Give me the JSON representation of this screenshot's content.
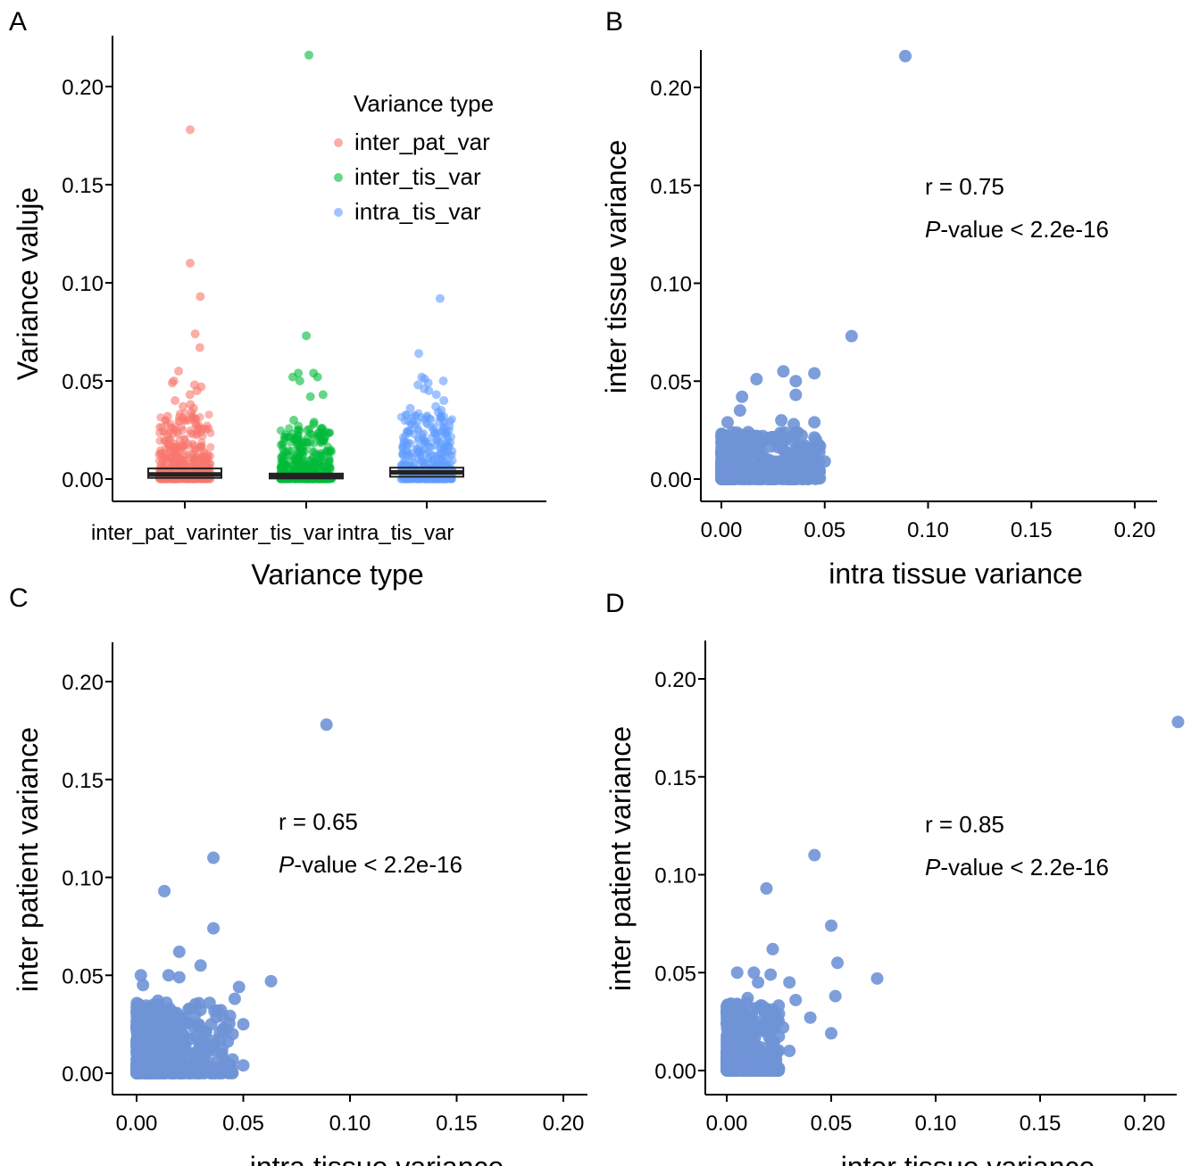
{
  "chart_data": [
    {
      "panel": "A",
      "type": "scatter",
      "subtype": "jitter-box",
      "xlabel": "Variance type",
      "ylabel": "Variance valuje",
      "ylim": [
        -0.012,
        0.225
      ],
      "yticks": [
        "0.00",
        "0.05",
        "0.10",
        "0.15",
        "0.20"
      ],
      "yticks_values": [
        0,
        0.05,
        0.1,
        0.15,
        0.2
      ],
      "categories": [
        "inter_pat_var",
        "inter_tis_var",
        "intra_tis_var"
      ],
      "legend": {
        "title": "Variance type",
        "placement": "top-right",
        "entries": [
          "inter_pat_var",
          "inter_tis_var",
          "intra_tis_var"
        ]
      },
      "grid": false,
      "series": [
        {
          "name": "inter_pat_var",
          "color": "#f8766d",
          "box": [
            0.0006,
            0.0024,
            0.0054
          ],
          "outliers": [
            0.178,
            0.11,
            0.093,
            0.074,
            0.067,
            0.055,
            0.05,
            0.049,
            0.048,
            0.047,
            0.045,
            0.043,
            0.04,
            0.038,
            0.037,
            0.036,
            0.034,
            0.032,
            0.03,
            0.028
          ]
        },
        {
          "name": "inter_tis_var",
          "color": "#00ba38",
          "box": [
            0.0003,
            0.0013,
            0.0028
          ],
          "outliers": [
            0.216,
            0.073,
            0.054,
            0.054,
            0.052,
            0.052,
            0.05,
            0.043,
            0.042,
            0.03,
            0.029,
            0.028,
            0.027,
            0.026,
            0.025
          ]
        },
        {
          "name": "intra_tis_var",
          "color": "#619cff",
          "box": [
            0.0012,
            0.0034,
            0.0058
          ],
          "outliers": [
            0.092,
            0.064,
            0.052,
            0.051,
            0.05,
            0.049,
            0.048,
            0.046,
            0.045,
            0.043,
            0.04,
            0.037,
            0.036,
            0.035,
            0.034
          ]
        }
      ]
    },
    {
      "panel": "B",
      "type": "scatter",
      "xlabel": "intra tissue variance",
      "ylabel": "inter tissue variance",
      "xlim": [
        -0.012,
        0.212
      ],
      "ylim": [
        -0.012,
        0.22
      ],
      "xticks": [
        "0.00",
        "0.05",
        "0.10",
        "0.15",
        "0.20"
      ],
      "yticks": [
        "0.00",
        "0.05",
        "0.10",
        "0.15",
        "0.20"
      ],
      "ticks_values": [
        0,
        0.05,
        0.1,
        0.15,
        0.2
      ],
      "annotation_r": "r = 0.75",
      "annotation_p_italic": "P",
      "annotation_p_rest": "-value < 2.2e-16",
      "color": "#6f93d6",
      "grid": false,
      "points": [
        [
          0.089,
          0.216
        ],
        [
          0.063,
          0.073
        ],
        [
          0.045,
          0.054
        ],
        [
          0.03,
          0.055
        ],
        [
          0.036,
          0.05
        ],
        [
          0.017,
          0.051
        ],
        [
          0.036,
          0.043
        ],
        [
          0.01,
          0.042
        ],
        [
          0.009,
          0.035
        ],
        [
          0.029,
          0.03
        ],
        [
          0.035,
          0.028
        ],
        [
          0.045,
          0.029
        ],
        [
          0.003,
          0.029
        ],
        [
          0.013,
          0.024
        ],
        [
          0.02,
          0.022
        ],
        [
          0.045,
          0.016
        ],
        [
          0.05,
          0.009
        ],
        [
          0.046,
          0.01
        ],
        [
          0.04,
          0.011
        ],
        [
          0.033,
          0.013
        ],
        [
          0.028,
          0.009
        ],
        [
          0.025,
          0.005
        ],
        [
          0.035,
          0.006
        ],
        [
          0.002,
          0.022
        ],
        [
          0.006,
          0.018
        ]
      ]
    },
    {
      "panel": "C",
      "type": "scatter",
      "xlabel": "intra tissue variance",
      "ylabel": "inter patient variance",
      "xlim": [
        -0.012,
        0.212
      ],
      "ylim": [
        -0.012,
        0.22
      ],
      "xticks": [
        "0.00",
        "0.05",
        "0.10",
        "0.15",
        "0.20"
      ],
      "yticks": [
        "0.00",
        "0.05",
        "0.10",
        "0.15",
        "0.20"
      ],
      "ticks_values": [
        0,
        0.05,
        0.1,
        0.15,
        0.2
      ],
      "annotation_r": "r = 0.65",
      "annotation_p_italic": "P",
      "annotation_p_rest": "-value < 2.2e-16",
      "color": "#6f93d6",
      "grid": false,
      "points": [
        [
          0.089,
          0.178
        ],
        [
          0.036,
          0.11
        ],
        [
          0.013,
          0.093
        ],
        [
          0.036,
          0.074
        ],
        [
          0.02,
          0.062
        ],
        [
          0.03,
          0.055
        ],
        [
          0.063,
          0.047
        ],
        [
          0.002,
          0.05
        ],
        [
          0.015,
          0.05
        ],
        [
          0.02,
          0.049
        ],
        [
          0.003,
          0.045
        ],
        [
          0.048,
          0.044
        ],
        [
          0.046,
          0.038
        ],
        [
          0.01,
          0.037
        ],
        [
          0.014,
          0.036
        ],
        [
          0.008,
          0.035
        ],
        [
          0.025,
          0.033
        ],
        [
          0.035,
          0.025
        ],
        [
          0.05,
          0.025
        ],
        [
          0.045,
          0.02
        ],
        [
          0.04,
          0.01
        ],
        [
          0.045,
          0.007
        ],
        [
          0.05,
          0.004
        ],
        [
          0.03,
          0.015
        ],
        [
          0.017,
          0.02
        ],
        [
          0.022,
          0.018
        ]
      ]
    },
    {
      "panel": "D",
      "type": "scatter",
      "xlabel": "inter tissue variance",
      "ylabel": "inter patient variance",
      "xlim": [
        -0.012,
        0.218
      ],
      "ylim": [
        -0.012,
        0.22
      ],
      "xticks": [
        "0.00",
        "0.05",
        "0.10",
        "0.15",
        "0.20"
      ],
      "yticks": [
        "0.00",
        "0.05",
        "0.10",
        "0.15",
        "0.20"
      ],
      "ticks_values": [
        0,
        0.05,
        0.1,
        0.15,
        0.2
      ],
      "annotation_r": "r = 0.85",
      "annotation_p_italic": "P",
      "annotation_p_rest": "-value < 2.2e-16",
      "color": "#6f93d6",
      "grid": false,
      "points": [
        [
          0.216,
          0.178
        ],
        [
          0.042,
          0.11
        ],
        [
          0.019,
          0.093
        ],
        [
          0.05,
          0.074
        ],
        [
          0.022,
          0.062
        ],
        [
          0.053,
          0.055
        ],
        [
          0.072,
          0.047
        ],
        [
          0.005,
          0.05
        ],
        [
          0.013,
          0.05
        ],
        [
          0.021,
          0.049
        ],
        [
          0.015,
          0.045
        ],
        [
          0.03,
          0.045
        ],
        [
          0.052,
          0.038
        ],
        [
          0.033,
          0.036
        ],
        [
          0.01,
          0.037
        ],
        [
          0.025,
          0.029
        ],
        [
          0.04,
          0.027
        ],
        [
          0.05,
          0.019
        ],
        [
          0.03,
          0.01
        ],
        [
          0.022,
          0.003
        ],
        [
          0.018,
          0.02
        ],
        [
          0.012,
          0.028
        ],
        [
          0.007,
          0.031
        ],
        [
          0.027,
          0.022
        ]
      ]
    }
  ],
  "panel_labels": [
    "A",
    "B",
    "C",
    "D"
  ]
}
